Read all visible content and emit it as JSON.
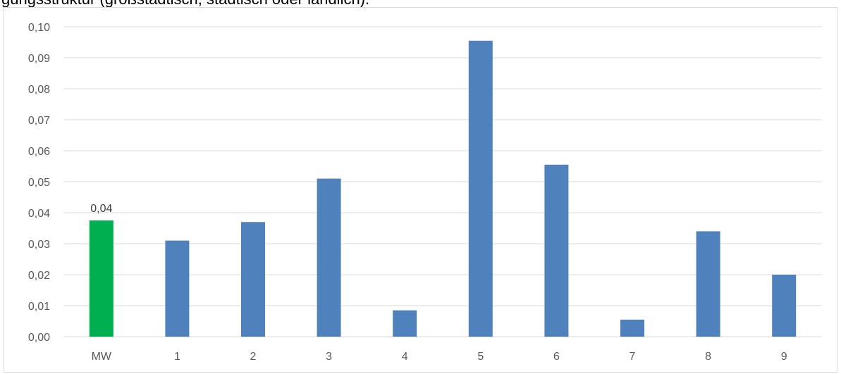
{
  "caption": "gungsstruktur (großstädtisch, städtisch oder ländlich).",
  "colors": {
    "highlight": "#00b050",
    "bar": "#4f81bd",
    "grid": "#d9d9d9",
    "tick": "#595959"
  },
  "chart_data": {
    "type": "bar",
    "title": "",
    "xlabel": "",
    "ylabel": "",
    "categories": [
      "MW",
      "1",
      "2",
      "3",
      "4",
      "5",
      "6",
      "7",
      "8",
      "9"
    ],
    "values": [
      0.0375,
      0.031,
      0.037,
      0.051,
      0.0085,
      0.0955,
      0.0555,
      0.0055,
      0.034,
      0.02
    ],
    "highlight_index": 0,
    "data_labels": [
      {
        "index": 0,
        "text": "0,04"
      }
    ],
    "ylim": [
      0,
      0.1
    ],
    "yticks": [
      "0,00",
      "0,01",
      "0,02",
      "0,03",
      "0,04",
      "0,05",
      "0,06",
      "0,07",
      "0,08",
      "0,09",
      "0,10"
    ],
    "grid": true,
    "legend": "none"
  }
}
